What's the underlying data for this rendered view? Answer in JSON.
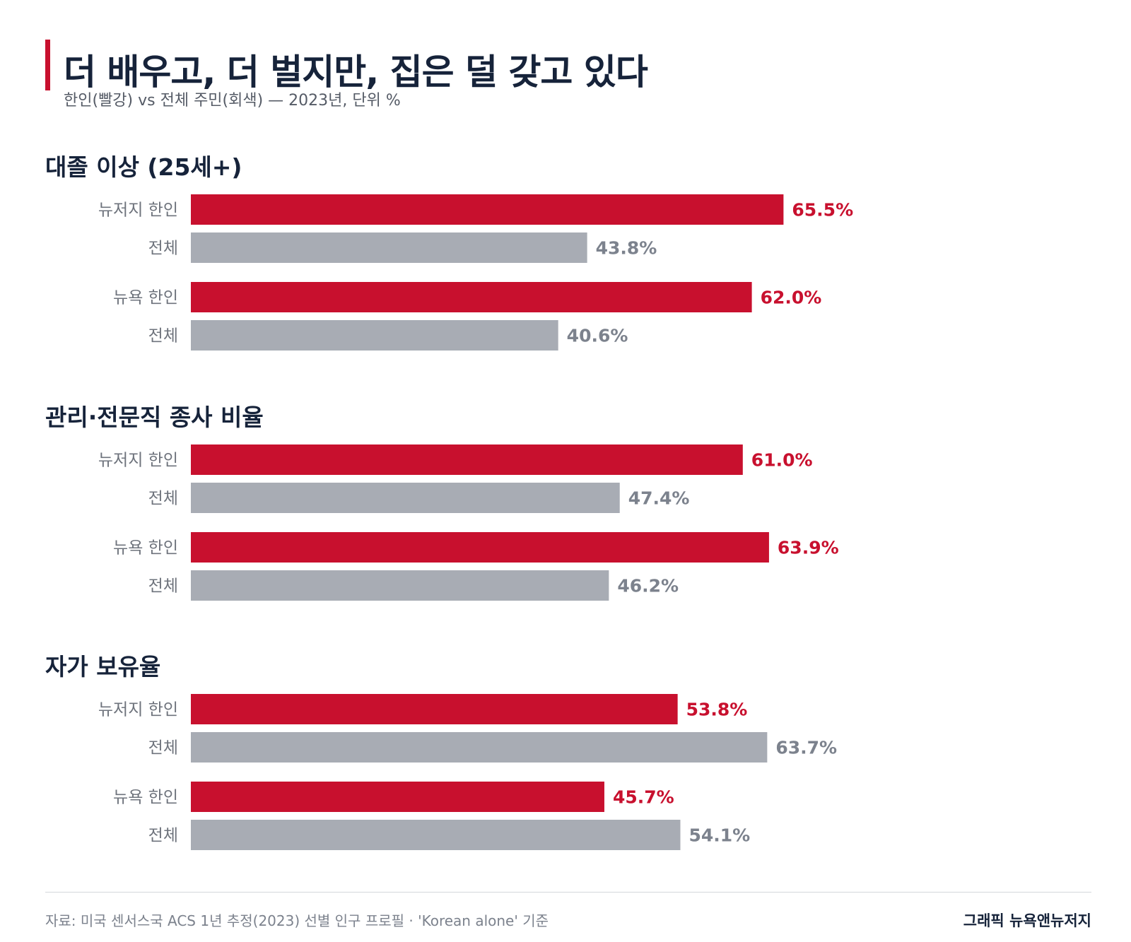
{
  "header": {
    "title": "더 배우고, 더 벌지만, 집은 덜 갖고 있다",
    "subtitle": "한인(빨강) vs 전체 주민(회색) — 2023년, 단위 %"
  },
  "colors": {
    "accent": "#c8102e",
    "korean": "#c8102e",
    "total": "#a8acb4",
    "total_label": "#7c828d",
    "title": "#16233a",
    "row_label": "#6e737c"
  },
  "chart_data": {
    "type": "bar",
    "orientation": "horizontal",
    "unit": "%",
    "groups": [
      {
        "title": "대졸 이상 (25세+)",
        "rows": [
          {
            "label": "뉴저지 한인",
            "value": 65.5,
            "kind": "korean"
          },
          {
            "label": "전체",
            "value": 43.8,
            "kind": "total"
          },
          {
            "label": "뉴욕 한인",
            "value": 62.0,
            "kind": "korean"
          },
          {
            "label": "전체",
            "value": 40.6,
            "kind": "total"
          }
        ]
      },
      {
        "title": "관리·전문직 종사 비율",
        "rows": [
          {
            "label": "뉴저지 한인",
            "value": 61.0,
            "kind": "korean"
          },
          {
            "label": "전체",
            "value": 47.4,
            "kind": "total"
          },
          {
            "label": "뉴욕 한인",
            "value": 63.9,
            "kind": "korean"
          },
          {
            "label": "전체",
            "value": 46.2,
            "kind": "total"
          }
        ]
      },
      {
        "title": "자가 보유율",
        "rows": [
          {
            "label": "뉴저지 한인",
            "value": 53.8,
            "kind": "korean"
          },
          {
            "label": "전체",
            "value": 63.7,
            "kind": "total"
          },
          {
            "label": "뉴욕 한인",
            "value": 45.7,
            "kind": "korean"
          },
          {
            "label": "전체",
            "value": 54.1,
            "kind": "total"
          }
        ]
      }
    ]
  },
  "footer": {
    "source": "자료: 미국 센서스국 ACS 1년 추정(2023) 선별 인구 프로필 · 'Korean alone' 기준",
    "credit": "그래픽 뉴욕앤뉴저지"
  }
}
